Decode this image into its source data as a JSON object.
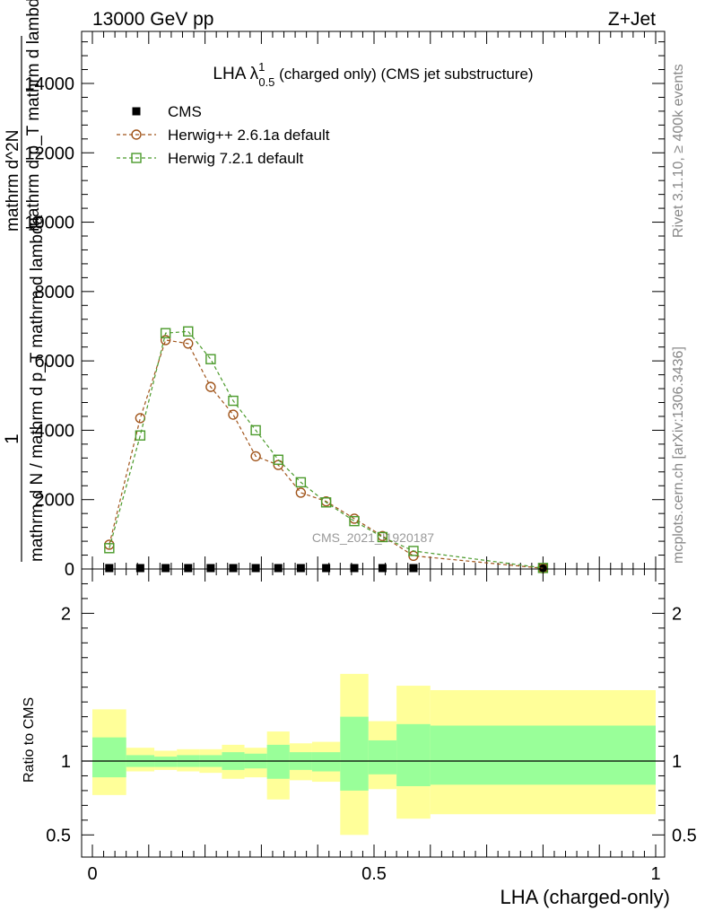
{
  "header": {
    "energy": "13000 GeV pp",
    "process": "Z+Jet"
  },
  "side_labels": {
    "rivet": "Rivet 3.1.10, ≥ 400k events",
    "mcplots": "mcplots.cern.ch [arXiv:1306.3436]"
  },
  "watermark": "CMS_2021_I1920187",
  "chart_data": [
    {
      "type": "line",
      "title": "LHA λ",
      "title_sup": "1",
      "title_sub": "0.5",
      "title_suffix": "(charged only) (CMS jet substructure)",
      "ylabel_lines": [
        "mathrm d N / mathrm d p_T mathrm d lambda",
        "mathrm d^2N",
        "mathrm d p_T mathrm d lambda",
        "1"
      ],
      "ylim": [
        0,
        15500
      ],
      "xlim": [
        -0.02,
        1.0
      ],
      "y_ticks": [
        0,
        2000,
        4000,
        6000,
        8000,
        10000,
        12000,
        14000
      ],
      "y_tick_labels": [
        "0",
        "2000",
        "4000",
        "6000",
        "8000",
        "10000",
        "12000",
        "14000"
      ],
      "legend_position": "top-left",
      "series": [
        {
          "name": "CMS",
          "color": "#000000",
          "marker": "filled-square",
          "x": [
            0.03,
            0.085,
            0.13,
            0.17,
            0.21,
            0.25,
            0.29,
            0.33,
            0.37,
            0.415,
            0.465,
            0.515,
            0.57,
            0.8
          ],
          "y": [
            0,
            0,
            0,
            0,
            0,
            0,
            0,
            0,
            0,
            0,
            0,
            0,
            0,
            0
          ]
        },
        {
          "name": "Herwig++ 2.6.1a default",
          "color": "#a0541a",
          "marker": "open-circle",
          "x": [
            0.03,
            0.085,
            0.13,
            0.17,
            0.21,
            0.25,
            0.29,
            0.33,
            0.37,
            0.415,
            0.465,
            0.515,
            0.57,
            0.8
          ],
          "y": [
            700,
            4350,
            6600,
            6500,
            5250,
            4450,
            3250,
            3000,
            2200,
            1950,
            1450,
            950,
            380,
            20
          ]
        },
        {
          "name": "Herwig 7.2.1 default",
          "color": "#4a9a2a",
          "marker": "open-square",
          "x": [
            0.03,
            0.085,
            0.13,
            0.17,
            0.21,
            0.25,
            0.29,
            0.33,
            0.37,
            0.415,
            0.465,
            0.515,
            0.57,
            0.8
          ],
          "y": [
            600,
            3850,
            6800,
            6850,
            6050,
            4850,
            4000,
            3150,
            2500,
            1920,
            1380,
            920,
            520,
            30
          ]
        }
      ]
    },
    {
      "type": "area",
      "ylabel": "Ratio to CMS",
      "xlabel": "LHA (charged-only)",
      "ylim": [
        0.35,
        2.3
      ],
      "xlim": [
        -0.02,
        1.0
      ],
      "x_ticks": [
        0,
        0.5,
        1
      ],
      "x_tick_labels": [
        "0",
        "0.5",
        "1"
      ],
      "y_ticks": [
        0.5,
        1,
        2
      ],
      "y_tick_labels": [
        "0.5",
        "1",
        "2"
      ],
      "reference_line": 1,
      "band_colors": {
        "outer": "#ffff99",
        "inner": "#99ff99"
      },
      "bins": [
        {
          "lo": 0.0,
          "hi": 0.06,
          "y_lo": 0.77,
          "y_hi": 1.35,
          "g_lo": 0.89,
          "g_hi": 1.16
        },
        {
          "lo": 0.06,
          "hi": 0.11,
          "y_lo": 0.93,
          "y_hi": 1.09,
          "g_lo": 0.96,
          "g_hi": 1.04
        },
        {
          "lo": 0.11,
          "hi": 0.15,
          "y_lo": 0.94,
          "y_hi": 1.07,
          "g_lo": 0.96,
          "g_hi": 1.03
        },
        {
          "lo": 0.15,
          "hi": 0.19,
          "y_lo": 0.93,
          "y_hi": 1.08,
          "g_lo": 0.96,
          "g_hi": 1.04
        },
        {
          "lo": 0.19,
          "hi": 0.23,
          "y_lo": 0.92,
          "y_hi": 1.08,
          "g_lo": 0.96,
          "g_hi": 1.04
        },
        {
          "lo": 0.23,
          "hi": 0.27,
          "y_lo": 0.88,
          "y_hi": 1.11,
          "g_lo": 0.94,
          "g_hi": 1.06
        },
        {
          "lo": 0.27,
          "hi": 0.31,
          "y_lo": 0.89,
          "y_hi": 1.09,
          "g_lo": 0.95,
          "g_hi": 1.05
        },
        {
          "lo": 0.31,
          "hi": 0.35,
          "y_lo": 0.74,
          "y_hi": 1.2,
          "g_lo": 0.88,
          "g_hi": 1.11
        },
        {
          "lo": 0.35,
          "hi": 0.39,
          "y_lo": 0.87,
          "y_hi": 1.12,
          "g_lo": 0.94,
          "g_hi": 1.06
        },
        {
          "lo": 0.39,
          "hi": 0.44,
          "y_lo": 0.86,
          "y_hi": 1.13,
          "g_lo": 0.93,
          "g_hi": 1.06
        },
        {
          "lo": 0.44,
          "hi": 0.49,
          "y_lo": 0.5,
          "y_hi": 1.59,
          "g_lo": 0.8,
          "g_hi": 1.3
        },
        {
          "lo": 0.49,
          "hi": 0.54,
          "y_lo": 0.81,
          "y_hi": 1.27,
          "g_lo": 0.91,
          "g_hi": 1.14
        },
        {
          "lo": 0.54,
          "hi": 0.6,
          "y_lo": 0.61,
          "y_hi": 1.51,
          "g_lo": 0.83,
          "g_hi": 1.25
        },
        {
          "lo": 0.6,
          "hi": 1.0,
          "y_lo": 0.64,
          "y_hi": 1.48,
          "g_lo": 0.84,
          "g_hi": 1.24
        }
      ]
    }
  ]
}
